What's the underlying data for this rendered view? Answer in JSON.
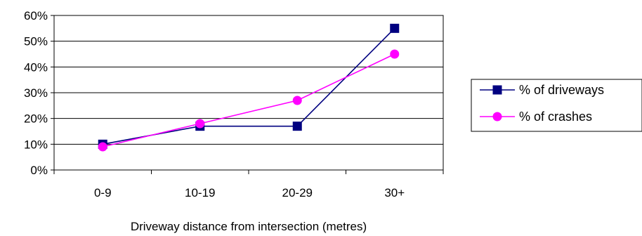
{
  "chart_data": {
    "type": "line",
    "categories": [
      "0-9",
      "10-19",
      "20-29",
      "30+"
    ],
    "series": [
      {
        "name": "% of driveways",
        "values": [
          10,
          17,
          17,
          55
        ],
        "color": "#000080",
        "marker": "square"
      },
      {
        "name": "% of crashes",
        "values": [
          9,
          18,
          27,
          45
        ],
        "color": "#ff00ff",
        "marker": "circle"
      }
    ],
    "title": "",
    "xlabel": "Driveway distance from intersection (metres)",
    "ylabel": "",
    "ylim": [
      0,
      60
    ],
    "yticks": [
      "0%",
      "10%",
      "20%",
      "30%",
      "40%",
      "50%",
      "60%"
    ],
    "grid": true,
    "legend_position": "right"
  }
}
